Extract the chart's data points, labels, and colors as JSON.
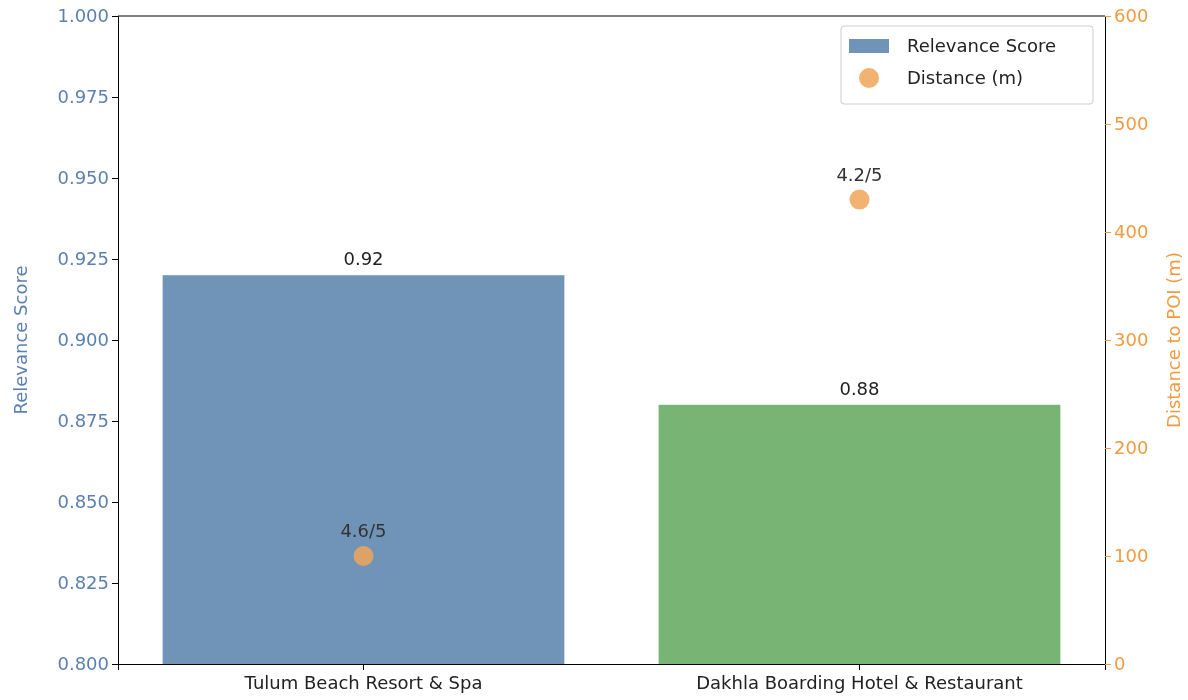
{
  "chart_data": {
    "type": "bar",
    "categories": [
      "Tulum Beach Resort & Spa",
      "Dakhla Boarding Hotel & Restaurant"
    ],
    "ylabel": "Relevance Score",
    "y2label": "Distance to POI (m)",
    "ylim": [
      0.8,
      1.0
    ],
    "yticks": [
      {
        "value": 0.8,
        "label": "0.800"
      },
      {
        "value": 0.825,
        "label": "0.825"
      },
      {
        "value": 0.85,
        "label": "0.850"
      },
      {
        "value": 0.875,
        "label": "0.875"
      },
      {
        "value": 0.9,
        "label": "0.900"
      },
      {
        "value": 0.925,
        "label": "0.925"
      },
      {
        "value": 0.95,
        "label": "0.950"
      },
      {
        "value": 0.975,
        "label": "0.975"
      },
      {
        "value": 1.0,
        "label": "1.000"
      }
    ],
    "y2lim": [
      0,
      600
    ],
    "y2ticks": [
      0,
      100,
      200,
      300,
      400,
      500,
      600
    ],
    "legend": "top right",
    "series": [
      {
        "name": "Relevance Score",
        "type": "bar",
        "values": [
          0.92,
          0.88
        ],
        "colors": [
          "#7094b8",
          "#78b473"
        ],
        "value_labels": [
          "0.92",
          "0.88"
        ]
      },
      {
        "name": "Distance (m)",
        "type": "scatter",
        "axis": "y2",
        "marker": "circle",
        "color": "#f0a458",
        "values": [
          100,
          430
        ]
      }
    ],
    "annotations": [
      {
        "text": "4.6/5",
        "x": "Tulum Beach Resort & Spa",
        "y": 0.833
      },
      {
        "text": "4.2/5",
        "x": "Dakhla Boarding Hotel & Restaurant",
        "y": 0.943
      }
    ]
  }
}
